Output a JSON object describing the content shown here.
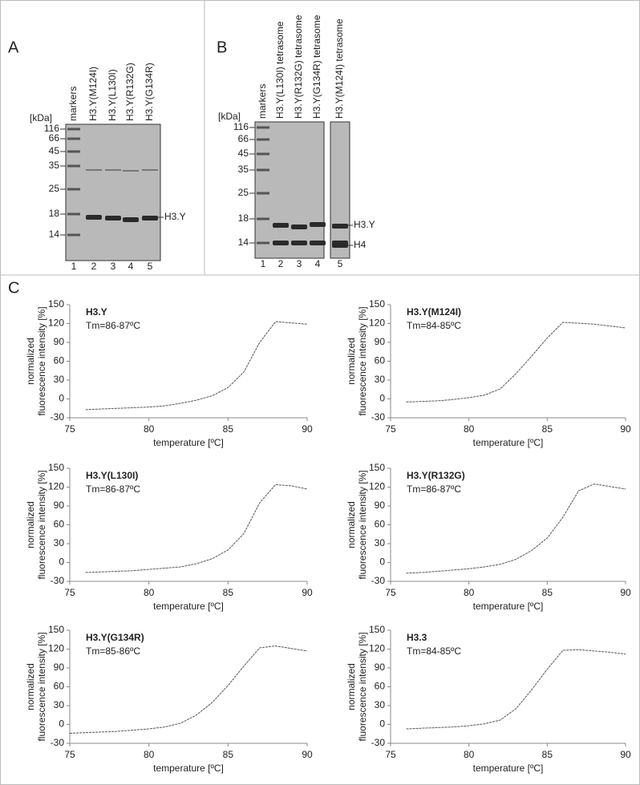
{
  "panels": [
    {
      "label": "A",
      "unit": "[kDa]",
      "lanes": [
        "markers",
        "H3.Y(M124I)",
        "H3.Y(L130I)",
        "H3.Y(R132G)",
        "H3.Y(G134R)"
      ],
      "lane_numbers": [
        "1",
        "2",
        "3",
        "4",
        "5"
      ],
      "markers": [
        "116",
        "66",
        "45",
        "35",
        "25",
        "18",
        "14"
      ],
      "band_labels": [
        "H3.Y"
      ]
    },
    {
      "label": "B",
      "lanes": [
        "markers",
        "H3.Y(L130I) tetrasome",
        "H3.Y(R132G) tetrasome",
        "H3.Y(G134R) tetrasome",
        "H3.Y(M124I) tetrasome"
      ],
      "lane_numbers": [
        "1",
        "2",
        "3",
        "4",
        "5"
      ],
      "markers": [
        "116",
        "66",
        "45",
        "35",
        "25",
        "18",
        "14"
      ],
      "band_labels": [
        "H3.Y",
        "H4"
      ]
    }
  ],
  "panel_c_label": "C",
  "chart_data": [
    {
      "type": "line",
      "title": "H3.Y",
      "subtitle": "Tm=86-87ºC",
      "xlabel": "temperature [ºC]",
      "ylabel": [
        "normalized",
        "fluorescence intensity [%]"
      ],
      "x": [
        76,
        77,
        78,
        79,
        80,
        81,
        82,
        83,
        84,
        85,
        86,
        87,
        88,
        90
      ],
      "values": [
        -17,
        -16,
        -15,
        -14,
        -13,
        -11,
        -7,
        -2,
        5,
        18,
        43,
        90,
        123,
        119
      ],
      "xlim": [
        75,
        90
      ],
      "ylim": [
        -30,
        150
      ],
      "xticks": [
        75,
        80,
        85,
        90
      ],
      "yticks": [
        -30,
        0,
        30,
        60,
        90,
        120,
        150
      ],
      "color": "#555555"
    },
    {
      "type": "line",
      "title": "H3.Y(M124I)",
      "subtitle": "Tm=84-85ºC",
      "xlabel": "temperature [ºC]",
      "ylabel": [
        "normalized",
        "fluorescence intensity [%]"
      ],
      "x": [
        76,
        77,
        78,
        79,
        80,
        81,
        82,
        83,
        84,
        85,
        86,
        88,
        90
      ],
      "values": [
        -5,
        -4,
        -3,
        -1,
        2,
        6,
        16,
        40,
        68,
        97,
        122,
        119,
        113
      ],
      "xlim": [
        75,
        90
      ],
      "ylim": [
        -30,
        150
      ],
      "xticks": [
        75,
        80,
        85,
        90
      ],
      "yticks": [
        -30,
        0,
        30,
        60,
        90,
        120,
        150
      ],
      "color": "#555555"
    },
    {
      "type": "line",
      "title": "H3.Y(L130I)",
      "subtitle": "Tm=86-87ºC",
      "xlabel": "temperature [ºC]",
      "ylabel": [
        "normalized",
        "fluorescence intensity [%]"
      ],
      "x": [
        76,
        77,
        78,
        79,
        80,
        81,
        82,
        83,
        84,
        85,
        86,
        87,
        88,
        89,
        90
      ],
      "values": [
        -16,
        -15,
        -14,
        -13,
        -11,
        -9,
        -7,
        -2,
        6,
        20,
        46,
        95,
        124,
        122,
        117
      ],
      "xlim": [
        75,
        90
      ],
      "ylim": [
        -30,
        150
      ],
      "xticks": [
        75,
        80,
        85,
        90
      ],
      "yticks": [
        -30,
        0,
        30,
        60,
        90,
        120,
        150
      ],
      "color": "#555555"
    },
    {
      "type": "line",
      "title": "H3.Y(R132G)",
      "subtitle": "Tm=86-87ºC",
      "xlabel": "temperature [ºC]",
      "ylabel": [
        "normalized",
        "fluorescence intensity [%]"
      ],
      "x": [
        76,
        77,
        78,
        79,
        80,
        81,
        82,
        83,
        84,
        85,
        86,
        87,
        88,
        89,
        90
      ],
      "values": [
        -17,
        -16,
        -14,
        -12,
        -10,
        -7,
        -3,
        5,
        19,
        39,
        72,
        114,
        125,
        121,
        117
      ],
      "xlim": [
        75,
        90
      ],
      "ylim": [
        -30,
        150
      ],
      "xticks": [
        75,
        80,
        85,
        90
      ],
      "yticks": [
        -30,
        0,
        30,
        60,
        90,
        120,
        150
      ],
      "color": "#555555"
    },
    {
      "type": "line",
      "title": "H3.Y(G134R)",
      "subtitle": "Tm=85-86ºC",
      "xlabel": "temperature [ºC]",
      "ylabel": [
        "normalized",
        "fluorescence intensity [%]"
      ],
      "x": [
        75,
        77,
        78,
        79,
        80,
        81,
        82,
        83,
        84,
        85,
        86,
        87,
        88,
        89,
        90
      ],
      "values": [
        -14,
        -12,
        -11,
        -9,
        -7,
        -4,
        2,
        15,
        35,
        62,
        93,
        122,
        125,
        121,
        117
      ],
      "xlim": [
        75,
        90
      ],
      "ylim": [
        -30,
        150
      ],
      "xticks": [
        75,
        80,
        85,
        90
      ],
      "yticks": [
        -30,
        0,
        30,
        60,
        90,
        120,
        150
      ],
      "color": "#555555"
    },
    {
      "type": "line",
      "title": "H3.3",
      "subtitle": "Tm=84-85ºC",
      "xlabel": "temperature [ºC]",
      "ylabel": [
        "normalized",
        "fluorescence intensity [%]"
      ],
      "x": [
        76,
        77,
        78,
        79,
        80,
        81,
        82,
        83,
        84,
        85,
        86,
        87,
        88,
        89,
        90
      ],
      "values": [
        -7,
        -6,
        -5,
        -4,
        -2,
        1,
        7,
        25,
        55,
        88,
        118,
        119,
        117,
        115,
        112
      ],
      "xlim": [
        75,
        90
      ],
      "ylim": [
        -30,
        150
      ],
      "xticks": [
        75,
        80,
        85,
        90
      ],
      "yticks": [
        -30,
        0,
        30,
        60,
        90,
        120,
        150
      ],
      "color": "#555555"
    }
  ]
}
